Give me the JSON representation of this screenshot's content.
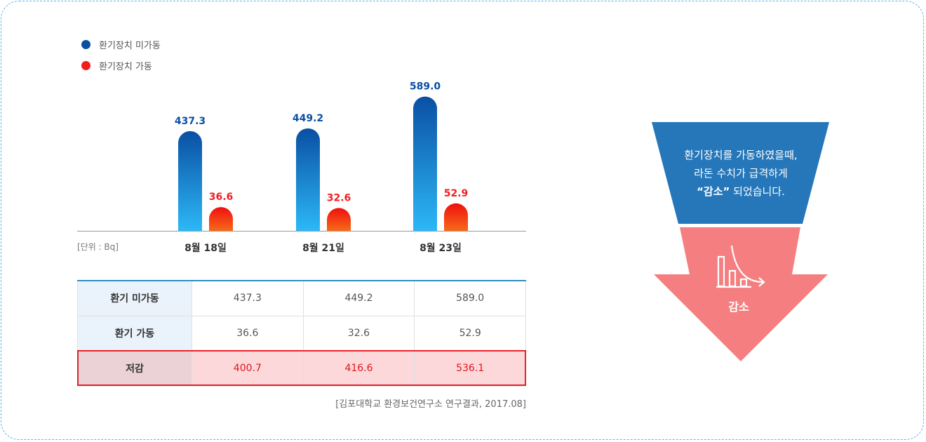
{
  "legend": {
    "not_running": "환기장치 미가동",
    "running": "환기장치 가동"
  },
  "colors": {
    "not_running": "#0a4fa3",
    "running": "#f11e1e",
    "arrow_top": "#2577ba",
    "arrow_bottom": "#f57e80",
    "reduce_text": "#e0161b"
  },
  "chart_data": {
    "type": "bar",
    "categories": [
      "8월 18일",
      "8월 21일",
      "8월 23일"
    ],
    "series": [
      {
        "name": "환기장치 미가동",
        "values": [
          437.3,
          449.2,
          589.0
        ]
      },
      {
        "name": "환기장치 가동",
        "values": [
          36.6,
          32.6,
          52.9
        ]
      }
    ],
    "value_labels": {
      "not_running": [
        "437.3",
        "449.2",
        "589.0"
      ],
      "running": [
        "36.6",
        "32.6",
        "52.9"
      ]
    },
    "unit_label": "[단위 : Bq]",
    "legend_position": "top-left",
    "grid": false
  },
  "table": {
    "rows": [
      {
        "label": "환기 미가동",
        "values": [
          "437.3",
          "449.2",
          "589.0"
        ]
      },
      {
        "label": "환기 가동",
        "values": [
          "36.6",
          "32.6",
          "52.9"
        ]
      },
      {
        "label": "저감",
        "values": [
          "400.7",
          "416.6",
          "536.1"
        ]
      }
    ]
  },
  "source": "[김포대학교 환경보건연구소 연구결과, 2017.08]",
  "callout": {
    "line1": "환기장치를 가동하였을때,",
    "line2": "라돈 수치가 급격하게",
    "line3_strong": "“감소”",
    "line3_rest": " 되었습니다.",
    "reduce_label": "감소",
    "icon": "decrease-trend-icon"
  }
}
